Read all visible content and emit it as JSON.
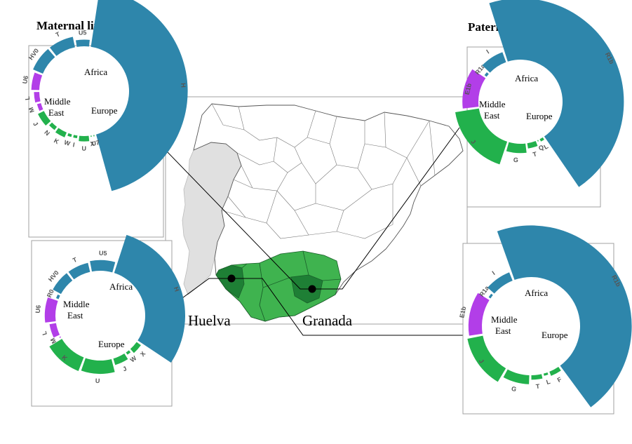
{
  "titles": {
    "maternal": "Maternal lineages",
    "paternal": "Paternal lineages"
  },
  "cities": {
    "huelva": "Huelva",
    "granada": "Granada"
  },
  "regions": {
    "africa": "Africa",
    "middle_east_1": "Middle",
    "middle_east_2": "East",
    "europe": "Europe"
  },
  "colors": {
    "africa": "#b23ee8",
    "middle_east": "#22b14c",
    "europe": "#2e86ab",
    "portugal": "#e0e0e0",
    "andalusia_light": "#3fb34f",
    "andalusia_dark": "#1e7f35",
    "panel_border": "#a0a0a0"
  },
  "charts": [
    {
      "id": "maternal-granada",
      "haplogroups": [
        "M",
        "L",
        "U6",
        "HV0",
        "T",
        "U5",
        "H",
        "U7",
        "X",
        "U",
        "I",
        "W",
        "K",
        "N",
        "J"
      ],
      "region_of": [
        "africa",
        "africa",
        "africa",
        "europe",
        "europe",
        "europe",
        "europe",
        "middle_east",
        "middle_east",
        "middle_east",
        "middle_east",
        "middle_east",
        "middle_east",
        "middle_east",
        "middle_east"
      ],
      "values": [
        3,
        4,
        6,
        8,
        8,
        5,
        44,
        1,
        1,
        4,
        2,
        2,
        4,
        3,
        5
      ]
    },
    {
      "id": "maternal-huelva",
      "haplogroups": [
        "M",
        "L",
        "U6",
        "R0",
        "HV0",
        "T",
        "U5",
        "H",
        "X",
        "W",
        "J",
        "U",
        "K"
      ],
      "region_of": [
        "africa",
        "africa",
        "africa",
        "europe",
        "europe",
        "europe",
        "europe",
        "europe",
        "middle_east",
        "middle_east",
        "middle_east",
        "middle_east",
        "middle_east"
      ],
      "values": [
        1,
        5,
        8,
        2,
        7,
        7,
        8,
        30,
        4,
        2,
        5,
        10,
        11
      ]
    },
    {
      "id": "paternal-granada",
      "haplogroups": [
        "E1b",
        "R1a",
        "I",
        "R1b",
        "L",
        "Q",
        "T",
        "G",
        "J"
      ],
      "region_of": [
        "africa",
        "europe",
        "europe",
        "europe",
        "middle_east",
        "middle_east",
        "middle_east",
        "middle_east",
        "middle_east"
      ],
      "values": [
        12,
        2,
        8,
        46,
        2,
        1,
        4,
        7,
        18
      ]
    },
    {
      "id": "paternal-huelva",
      "haplogroups": [
        "E1b",
        "R1a",
        "I",
        "R1b",
        "F",
        "L",
        "T",
        "G",
        "J"
      ],
      "region_of": [
        "africa",
        "europe",
        "europe",
        "europe",
        "middle_east",
        "middle_east",
        "middle_east",
        "middle_east",
        "middle_east"
      ],
      "values": [
        12,
        2,
        8,
        46,
        4,
        2,
        4,
        8,
        14
      ]
    }
  ]
}
